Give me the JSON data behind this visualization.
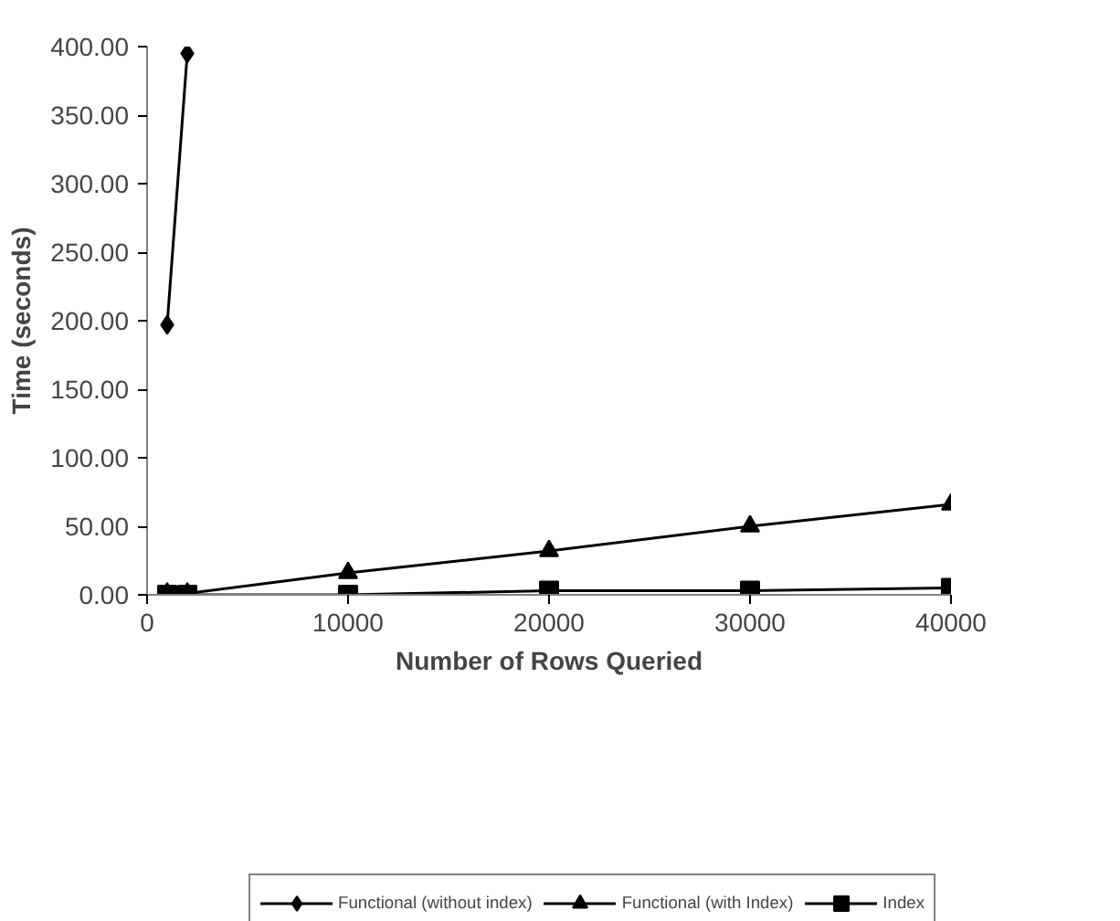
{
  "chart_data": {
    "type": "line",
    "xlabel": "Number of Rows Queried",
    "ylabel": "Time (seconds)",
    "xlim": [
      0,
      40000
    ],
    "xticks": [
      0,
      10000,
      20000,
      30000,
      40000
    ],
    "ylim": [
      0,
      400
    ],
    "yticks": [
      {
        "value": 0,
        "label": "0.00"
      },
      {
        "value": 50,
        "label": "50.00"
      },
      {
        "value": 100,
        "label": "100.00"
      },
      {
        "value": 150,
        "label": "150.00"
      },
      {
        "value": 200,
        "label": "200.00"
      },
      {
        "value": 250,
        "label": "250.00"
      },
      {
        "value": 300,
        "label": "300.00"
      },
      {
        "value": 350,
        "label": "350.00"
      },
      {
        "value": 400,
        "label": "400.00"
      }
    ],
    "grid": false,
    "legend": "bottom",
    "series": [
      {
        "name": "Functional (without index)",
        "color": "#000000",
        "marker": "diamond",
        "x": [
          1000,
          2000
        ],
        "values": [
          197,
          395
        ]
      },
      {
        "name": "Functional (with Index)",
        "color": "#000000",
        "marker": "triangle",
        "x": [
          1000,
          2000,
          10000,
          20000,
          30000,
          40000
        ],
        "values": [
          1,
          1,
          16,
          32,
          50,
          66
        ]
      },
      {
        "name": "Index",
        "color": "#000000",
        "marker": "square",
        "x": [
          1000,
          2000,
          10000,
          20000,
          30000,
          40000
        ],
        "values": [
          0,
          0,
          0,
          3,
          3,
          5
        ]
      }
    ]
  }
}
